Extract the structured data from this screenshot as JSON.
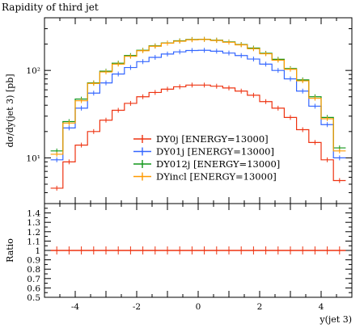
{
  "chart_data": {
    "title": "Rapidity of third jet",
    "type": "line",
    "xlabel": "y(jet 3)",
    "ylabel": "dσ/dy(jet 3) [pb]",
    "xlim": [
      -5,
      5
    ],
    "ylim": [
      3,
      400
    ],
    "yscale": "log",
    "x_ticks": [
      "-4",
      "-2",
      "0",
      "2",
      "4"
    ],
    "y_ticks": [
      "10²",
      "10¹"
    ],
    "legend_position": "center",
    "ratio_panel": {
      "ylabel": "Ratio",
      "ylim": [
        0.5,
        1.5
      ],
      "y_ticks": [
        "1.4",
        "1.3",
        "1.2",
        "1.1",
        "1",
        "0.9",
        "0.8",
        "0.7",
        "0.6",
        "0.5"
      ],
      "reference": "DY0j [ENERGY=13000]",
      "values": [
        1,
        1,
        1,
        1,
        1,
        1,
        1,
        1,
        1,
        1,
        1,
        1,
        1,
        1,
        1,
        1,
        1,
        1,
        1,
        1,
        1,
        1,
        1,
        1
      ]
    },
    "bin_edges": [
      -4.8,
      -4.4,
      -4.0,
      -3.6,
      -3.2,
      -2.8,
      -2.4,
      -2.0,
      -1.6,
      -1.2,
      -0.8,
      -0.4,
      0.0,
      0.4,
      0.8,
      1.2,
      1.6,
      2.0,
      2.4,
      2.8,
      3.2,
      3.6,
      4.0,
      4.4,
      4.8
    ],
    "series": [
      {
        "name": "DY0j [ENERGY=13000]",
        "color": "#ee3311",
        "values": [
          4.5,
          9,
          14,
          20,
          27,
          35,
          42,
          50,
          56,
          61,
          65,
          68,
          68,
          66,
          63,
          58,
          52,
          44,
          37,
          29,
          21,
          15,
          9.5,
          5.5
        ]
      },
      {
        "name": "DY01j [ENERGY=13000]",
        "color": "#3366ff",
        "values": [
          9.5,
          22,
          37,
          55,
          72,
          91,
          108,
          126,
          141,
          154,
          163,
          169,
          170,
          166,
          158,
          148,
          135,
          118,
          100,
          80,
          58,
          39,
          24,
          10
        ]
      },
      {
        "name": "DY012j [ENERGY=13000]",
        "color": "#109618",
        "values": [
          12,
          26,
          47,
          72,
          98,
          121,
          148,
          170,
          191,
          206,
          218,
          226,
          227,
          222,
          212,
          198,
          180,
          157,
          134,
          105,
          78,
          50,
          29,
          13
        ]
      },
      {
        "name": "DYincl [ENERGY=13000]",
        "color": "#ff9900",
        "values": [
          11,
          25,
          45,
          71,
          96,
          118,
          145,
          168,
          189,
          205,
          216,
          224,
          226,
          220,
          210,
          196,
          177,
          155,
          131,
          103,
          76,
          48,
          28,
          12
        ]
      }
    ]
  }
}
